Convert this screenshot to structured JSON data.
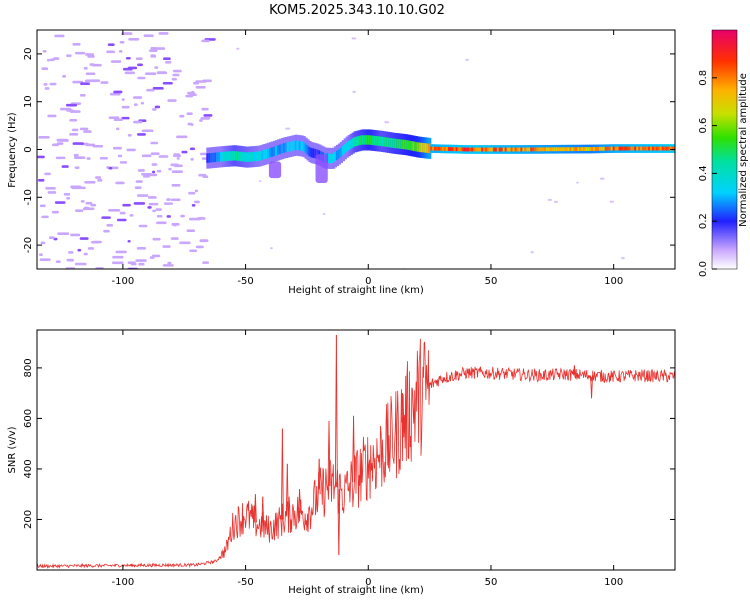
{
  "page_title": "KOM5.2025.343.10.10.G02",
  "chart_data": [
    {
      "type": "heatmap",
      "name": "spectrogram",
      "xlabel": "Height of straight line (km)",
      "ylabel": "Frequency (Hz)",
      "xlim": [
        -135,
        125
      ],
      "ylim": [
        -25,
        25
      ],
      "xticks": [
        -100,
        -50,
        0,
        50,
        100
      ],
      "xtick_labels": [
        "-100",
        "-50",
        "0",
        "50",
        "100"
      ],
      "yticks": [
        -20,
        -10,
        0,
        10,
        20
      ],
      "ytick_labels": [
        "-20",
        "-10",
        "0",
        "10",
        "20"
      ],
      "ridge": {
        "x": [
          -66,
          -60,
          -55,
          -50,
          -45,
          -40,
          -35,
          -30,
          -27,
          -24,
          -21,
          -18,
          -15,
          -12,
          -9,
          -6,
          -3,
          0,
          5,
          10,
          15,
          20,
          25,
          40,
          60,
          90,
          100,
          125
        ],
        "freq": [
          -1.8,
          -1.5,
          -1.3,
          -1.6,
          -1.4,
          -0.6,
          0.3,
          0.9,
          0.7,
          -0.6,
          -1.0,
          -1.8,
          -1.9,
          -0.8,
          0.6,
          1.6,
          2.0,
          2.0,
          1.7,
          1.3,
          1.0,
          0.5,
          0.2,
          0.0,
          0.0,
          0.1,
          0.2,
          0.2
        ],
        "amp": [
          0.2,
          0.35,
          0.45,
          0.4,
          0.35,
          0.3,
          0.3,
          0.35,
          0.3,
          0.25,
          0.2,
          0.3,
          0.35,
          0.3,
          0.35,
          0.45,
          0.5,
          0.55,
          0.45,
          0.5,
          0.55,
          0.6,
          0.85,
          0.9,
          0.85,
          0.75,
          0.85,
          0.9
        ]
      },
      "colorbar": {
        "label": "Normalized spectral amplitude",
        "ticks": [
          0.0,
          0.2,
          0.4,
          0.6,
          0.8
        ],
        "tick_labels": [
          "0.0",
          "0.2",
          "0.4",
          "0.6",
          "0.8"
        ],
        "range": [
          0,
          1
        ]
      }
    },
    {
      "type": "line",
      "name": "snr",
      "xlabel": "Height of straight line (km)",
      "ylabel": "SNR (v/v)",
      "xlim": [
        -135,
        125
      ],
      "ylim": [
        0,
        950
      ],
      "xticks": [
        -100,
        -50,
        0,
        50,
        100
      ],
      "xtick_labels": [
        "-100",
        "-50",
        "0",
        "50",
        "100"
      ],
      "yticks": [
        200,
        400,
        600,
        800
      ],
      "ytick_labels": [
        "200",
        "400",
        "600",
        "800"
      ],
      "color": "#e8322e",
      "envelope": {
        "x": [
          -135,
          -100,
          -70,
          -62,
          -58,
          -55,
          -50,
          -45,
          -40,
          -35,
          -30,
          -25,
          -20,
          -15,
          -12,
          -10,
          -5,
          0,
          5,
          10,
          15,
          20,
          25,
          30,
          35,
          40,
          50,
          60,
          70,
          80,
          90,
          100,
          110,
          125
        ],
        "y": [
          15,
          18,
          20,
          35,
          80,
          180,
          220,
          180,
          160,
          200,
          230,
          220,
          300,
          340,
          320,
          300,
          360,
          420,
          460,
          520,
          600,
          680,
          730,
          760,
          770,
          780,
          780,
          775,
          770,
          775,
          770,
          765,
          770,
          765
        ]
      },
      "spikes": [
        {
          "x": -46,
          "y": 300
        },
        {
          "x": -43,
          "y": 290
        },
        {
          "x": -35,
          "y": 560
        },
        {
          "x": -33,
          "y": 420
        },
        {
          "x": -28,
          "y": 320
        },
        {
          "x": -20,
          "y": 440
        },
        {
          "x": -16,
          "y": 590
        },
        {
          "x": -13,
          "y": 930
        },
        {
          "x": -12,
          "y": 60
        },
        {
          "x": -6,
          "y": 610
        },
        {
          "x": 14,
          "y": 700
        },
        {
          "x": 84,
          "y": 810
        },
        {
          "x": 91,
          "y": 680
        }
      ]
    }
  ]
}
